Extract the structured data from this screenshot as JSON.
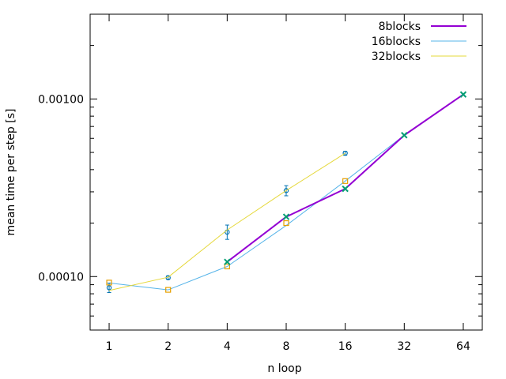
{
  "chart_data": {
    "type": "line",
    "title": "",
    "xlabel": "n loop",
    "ylabel": "mean time per step [s]",
    "x_scale": "log2",
    "y_scale": "log",
    "xlim": [
      0.8,
      80
    ],
    "ylim": [
      5e-05,
      0.003
    ],
    "x_ticks": [
      1,
      2,
      4,
      8,
      16,
      32,
      64
    ],
    "x_tick_labels": [
      "1",
      "2",
      "4",
      "8",
      "16",
      "32",
      "64"
    ],
    "y_ticks": [
      0.0001,
      0.001
    ],
    "y_tick_labels": [
      "0.00010",
      "0.00100"
    ],
    "grid": false,
    "legend_placement": "top-right",
    "series": [
      {
        "name": "16blocks",
        "color": "#56b4e9",
        "line_width": 1,
        "marker": "circle",
        "marker_color": "#0072b2",
        "x": [
          1,
          2,
          4,
          8,
          16
        ],
        "y": [
          8.66e-05,
          9.85e-05,
          0.000178,
          0.000305,
          0.000495
        ],
        "err_low": [
          8.13e-05,
          9.65e-05,
          0.000162,
          0.000285,
          0.000482
        ],
        "err_high": [
          9.18e-05,
          0.000101,
          0.000195,
          0.000325,
          0.000507
        ],
        "line_x": [
          1,
          2,
          4,
          8,
          16,
          32,
          64
        ],
        "line_y": [
          9.2e-05,
          8.42e-05,
          0.000114,
          0.000194,
          0.000345,
          0.000625,
          0.00106
        ]
      },
      {
        "name": "32blocks",
        "color": "#e5d83a",
        "line_width": 1,
        "marker": "square",
        "marker_color": "#e69f00",
        "x": [
          1,
          2,
          4,
          8,
          16
        ],
        "y": [
          9.25e-05,
          8.42e-05,
          0.000114,
          0.0002,
          0.000345
        ],
        "line_x": [
          1,
          2,
          4,
          8,
          16
        ],
        "line_y": [
          8.35e-05,
          9.92e-05,
          0.000183,
          0.000305,
          0.000495
        ]
      },
      {
        "name": "8blocks",
        "color": "#9400d3",
        "line_width": 2,
        "marker": "cross",
        "marker_color": "#009e73",
        "x": [
          4,
          8,
          16,
          32,
          64
        ],
        "y": [
          0.000121,
          0.000217,
          0.000312,
          0.000625,
          0.00106
        ],
        "line_x": [
          4,
          8,
          16,
          32,
          64
        ],
        "line_y": [
          0.000121,
          0.000217,
          0.000312,
          0.000625,
          0.00106
        ]
      }
    ],
    "legend_order": [
      "8blocks",
      "16blocks",
      "32blocks"
    ]
  }
}
